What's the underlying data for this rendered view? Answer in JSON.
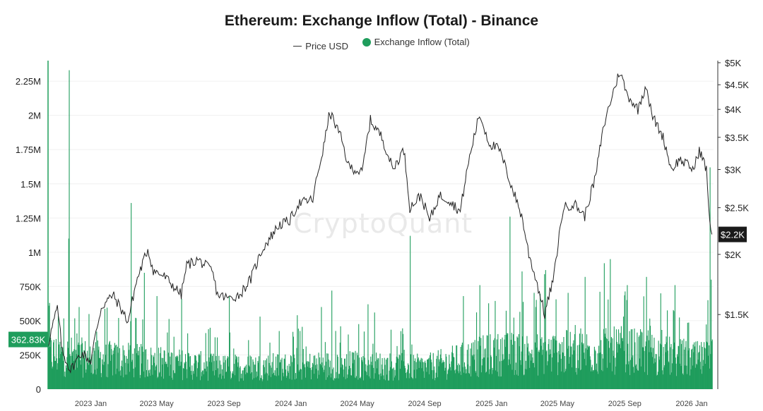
{
  "chart_data": {
    "type": "bar+line",
    "title": "Ethereum: Exchange Inflow (Total) - Binance",
    "legend": {
      "placement": "top-center",
      "entries": [
        "Price USD",
        "Exchange Inflow (Total)"
      ]
    },
    "watermark": "CryptoQuant",
    "x_range": [
      "2022-10-15",
      "2026-02-10"
    ],
    "x_ticks": [
      "2023 Jan",
      "2023 May",
      "2023 Sep",
      "2024 Jan",
      "2024 May",
      "2024 Sep",
      "2025 Jan",
      "2025 May",
      "2025 Sep",
      "2026 Jan"
    ],
    "left_axis": {
      "label": "",
      "range": [
        0,
        2400000
      ],
      "ticks": [
        "0",
        "250K",
        "500K",
        "750K",
        "1M",
        "1.25M",
        "1.5M",
        "1.75M",
        "2M",
        "2.25M"
      ]
    },
    "right_axis": {
      "label": "",
      "scale": "log",
      "range": [
        1050,
        5050
      ],
      "ticks": [
        "$1.5K",
        "$2K",
        "$2.5K",
        "$3K",
        "$3.5K",
        "$4K",
        "$4.5K",
        "$5K"
      ]
    },
    "current_values": {
      "inflow": "362.83K",
      "price": "$2.2K"
    },
    "series": [
      {
        "name": "Price USD",
        "axis": "right",
        "color": "#222222",
        "points": [
          [
            "2022-10-15",
            1300
          ],
          [
            "2022-11-01",
            1550
          ],
          [
            "2022-11-10",
            1250
          ],
          [
            "2022-11-25",
            1150
          ],
          [
            "2022-12-15",
            1250
          ],
          [
            "2023-01-01",
            1200
          ],
          [
            "2023-01-20",
            1550
          ],
          [
            "2023-02-10",
            1650
          ],
          [
            "2023-03-10",
            1450
          ],
          [
            "2023-03-25",
            1750
          ],
          [
            "2023-04-15",
            2050
          ],
          [
            "2023-04-25",
            1850
          ],
          [
            "2023-05-15",
            1800
          ],
          [
            "2023-06-15",
            1650
          ],
          [
            "2023-06-25",
            1900
          ],
          [
            "2023-07-15",
            1950
          ],
          [
            "2023-08-10",
            1850
          ],
          [
            "2023-08-20",
            1650
          ],
          [
            "2023-09-10",
            1620
          ],
          [
            "2023-09-30",
            1650
          ],
          [
            "2023-10-20",
            1780
          ],
          [
            "2023-11-10",
            2050
          ],
          [
            "2023-12-10",
            2300
          ],
          [
            "2023-12-30",
            2350
          ],
          [
            "2024-01-15",
            2550
          ],
          [
            "2024-02-10",
            2600
          ],
          [
            "2024-03-01",
            3350
          ],
          [
            "2024-03-12",
            3950
          ],
          [
            "2024-04-01",
            3500
          ],
          [
            "2024-04-15",
            3050
          ],
          [
            "2024-05-10",
            2950
          ],
          [
            "2024-05-25",
            3800
          ],
          [
            "2024-06-15",
            3500
          ],
          [
            "2024-07-05",
            3000
          ],
          [
            "2024-07-25",
            3300
          ],
          [
            "2024-08-05",
            2500
          ],
          [
            "2024-08-25",
            2650
          ],
          [
            "2024-09-10",
            2350
          ],
          [
            "2024-09-28",
            2650
          ],
          [
            "2024-10-15",
            2600
          ],
          [
            "2024-11-05",
            2450
          ],
          [
            "2024-11-20",
            3100
          ],
          [
            "2024-12-10",
            3900
          ],
          [
            "2024-12-28",
            3400
          ],
          [
            "2025-01-15",
            3300
          ],
          [
            "2025-02-05",
            2800
          ],
          [
            "2025-02-25",
            2400
          ],
          [
            "2025-03-10",
            2000
          ],
          [
            "2025-04-08",
            1500
          ],
          [
            "2025-04-25",
            1800
          ],
          [
            "2025-05-12",
            2500
          ],
          [
            "2025-06-01",
            2550
          ],
          [
            "2025-06-20",
            2400
          ],
          [
            "2025-07-10",
            2900
          ],
          [
            "2025-07-25",
            3700
          ],
          [
            "2025-08-23",
            4800
          ],
          [
            "2025-09-05",
            4300
          ],
          [
            "2025-09-25",
            4000
          ],
          [
            "2025-10-10",
            4500
          ],
          [
            "2025-10-20",
            3900
          ],
          [
            "2025-11-10",
            3500
          ],
          [
            "2025-11-25",
            3000
          ],
          [
            "2025-12-10",
            3150
          ],
          [
            "2026-01-05",
            3000
          ],
          [
            "2026-01-15",
            3300
          ],
          [
            "2026-01-28",
            3000
          ],
          [
            "2026-02-03",
            2300
          ],
          [
            "2026-02-07",
            2200
          ]
        ]
      },
      {
        "name": "Exchange Inflow (Total)",
        "axis": "left",
        "color": "#1f9d5c",
        "baseline": [
          [
            "2022-10-15",
            260000
          ],
          [
            "2023-01-01",
            230000
          ],
          [
            "2023-05-01",
            200000
          ],
          [
            "2023-09-01",
            160000
          ],
          [
            "2024-01-01",
            170000
          ],
          [
            "2024-05-01",
            180000
          ],
          [
            "2024-09-01",
            160000
          ],
          [
            "2025-01-01",
            260000
          ],
          [
            "2025-05-01",
            270000
          ],
          [
            "2025-09-01",
            290000
          ],
          [
            "2026-01-01",
            220000
          ],
          [
            "2026-02-07",
            220000
          ]
        ],
        "spikes": [
          [
            "2022-10-17",
            630000
          ],
          [
            "2022-11-22",
            2330000
          ],
          [
            "2022-11-21",
            1100000
          ],
          [
            "2022-12-10",
            600000
          ],
          [
            "2023-03-15",
            1360000
          ],
          [
            "2023-02-20",
            520000
          ],
          [
            "2023-04-08",
            850000
          ],
          [
            "2023-05-01",
            680000
          ],
          [
            "2023-06-15",
            660000
          ],
          [
            "2023-09-10",
            680000
          ],
          [
            "2023-11-05",
            530000
          ],
          [
            "2024-01-12",
            540000
          ],
          [
            "2024-02-25",
            600000
          ],
          [
            "2024-03-15",
            720000
          ],
          [
            "2024-05-20",
            620000
          ],
          [
            "2024-06-01",
            560000
          ],
          [
            "2024-08-05",
            1120000
          ],
          [
            "2024-11-10",
            680000
          ],
          [
            "2024-12-10",
            760000
          ],
          [
            "2025-02-03",
            1260000
          ],
          [
            "2025-02-25",
            860000
          ],
          [
            "2025-04-07",
            840000
          ],
          [
            "2025-04-09",
            870000
          ],
          [
            "2025-06-20",
            820000
          ],
          [
            "2025-07-25",
            920000
          ],
          [
            "2025-08-05",
            950000
          ],
          [
            "2025-09-05",
            760000
          ],
          [
            "2025-10-10",
            820000
          ],
          [
            "2025-11-05",
            700000
          ],
          [
            "2025-12-01",
            760000
          ],
          [
            "2026-01-30",
            650000
          ],
          [
            "2026-02-03",
            1620000
          ],
          [
            "2026-02-05",
            800000
          ],
          [
            "2026-02-07",
            362830
          ]
        ]
      }
    ]
  }
}
